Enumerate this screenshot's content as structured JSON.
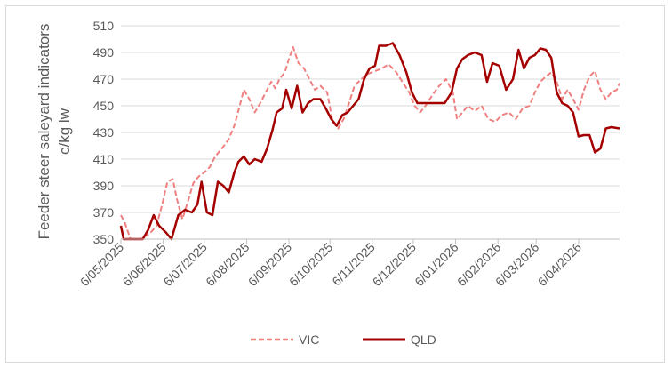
{
  "chart_data": {
    "type": "line",
    "ylabel_line1": "Feeder steer saleyard indicators",
    "ylabel_line2": "c/kg lw",
    "ylim": [
      350,
      510
    ],
    "yticks": [
      350,
      370,
      390,
      410,
      430,
      450,
      470,
      490,
      510
    ],
    "x_tick_labels": [
      "6/05/2025",
      "6/06/2025",
      "6/07/2025",
      "6/08/2025",
      "6/09/2025",
      "6/10/2025",
      "6/11/2025",
      "6/12/2025",
      "6/01/2026",
      "6/02/2026",
      "6/03/2026",
      "6/04/2026"
    ],
    "x_range": [
      "2025-05-06",
      "2026-05-06"
    ],
    "grid": "horizontal",
    "legend_position": "bottom",
    "series": [
      {
        "name": "VIC",
        "color": "#f08080",
        "style": "dashed",
        "points": [
          [
            "2025-05-06",
            368
          ],
          [
            "2025-05-09",
            362
          ],
          [
            "2025-05-13",
            350
          ],
          [
            "2025-05-20",
            350
          ],
          [
            "2025-05-27",
            354
          ],
          [
            "2025-06-01",
            360
          ],
          [
            "2025-06-05",
            375
          ],
          [
            "2025-06-09",
            393
          ],
          [
            "2025-06-13",
            395
          ],
          [
            "2025-06-16",
            380
          ],
          [
            "2025-06-20",
            365
          ],
          [
            "2025-06-24",
            378
          ],
          [
            "2025-06-28",
            392
          ],
          [
            "2025-07-02",
            397
          ],
          [
            "2025-07-06",
            400
          ],
          [
            "2025-07-10",
            404
          ],
          [
            "2025-07-14",
            412
          ],
          [
            "2025-07-19",
            418
          ],
          [
            "2025-07-24",
            425
          ],
          [
            "2025-07-28",
            435
          ],
          [
            "2025-08-01",
            450
          ],
          [
            "2025-08-04",
            462
          ],
          [
            "2025-08-08",
            455
          ],
          [
            "2025-08-12",
            445
          ],
          [
            "2025-08-16",
            452
          ],
          [
            "2025-08-20",
            460
          ],
          [
            "2025-08-24",
            468
          ],
          [
            "2025-08-27",
            463
          ],
          [
            "2025-08-30",
            470
          ],
          [
            "2025-09-03",
            475
          ],
          [
            "2025-09-06",
            485
          ],
          [
            "2025-09-09",
            494
          ],
          [
            "2025-09-13",
            482
          ],
          [
            "2025-09-17",
            478
          ],
          [
            "2025-09-21",
            470
          ],
          [
            "2025-09-25",
            462
          ],
          [
            "2025-09-29",
            465
          ],
          [
            "2025-10-04",
            460
          ],
          [
            "2025-10-08",
            438
          ],
          [
            "2025-10-12",
            433
          ],
          [
            "2025-10-16",
            440
          ],
          [
            "2025-10-20",
            452
          ],
          [
            "2025-10-24",
            465
          ],
          [
            "2025-10-29",
            470
          ],
          [
            "2025-11-03",
            474
          ],
          [
            "2025-11-08",
            476
          ],
          [
            "2025-11-13",
            478
          ],
          [
            "2025-11-18",
            481
          ],
          [
            "2025-11-23",
            476
          ],
          [
            "2025-11-28",
            468
          ],
          [
            "2025-12-03",
            460
          ],
          [
            "2025-12-07",
            450
          ],
          [
            "2025-12-11",
            445
          ],
          [
            "2025-12-15",
            450
          ],
          [
            "2025-12-20",
            458
          ],
          [
            "2025-12-25",
            465
          ],
          [
            "2025-12-30",
            470
          ],
          [
            "2026-01-04",
            460
          ],
          [
            "2026-01-07",
            440
          ],
          [
            "2026-01-11",
            445
          ],
          [
            "2026-01-15",
            450
          ],
          [
            "2026-01-20",
            446
          ],
          [
            "2026-01-25",
            450
          ],
          [
            "2026-01-30",
            440
          ],
          [
            "2026-02-04",
            438
          ],
          [
            "2026-02-09",
            443
          ],
          [
            "2026-02-14",
            445
          ],
          [
            "2026-02-19",
            440
          ],
          [
            "2026-02-24",
            448
          ],
          [
            "2026-03-01",
            450
          ],
          [
            "2026-03-05",
            460
          ],
          [
            "2026-03-09",
            468
          ],
          [
            "2026-03-13",
            472
          ],
          [
            "2026-03-17",
            475
          ],
          [
            "2026-03-21",
            468
          ],
          [
            "2026-03-25",
            455
          ],
          [
            "2026-03-29",
            462
          ],
          [
            "2026-04-02",
            455
          ],
          [
            "2026-04-06",
            447
          ],
          [
            "2026-04-10",
            462
          ],
          [
            "2026-04-14",
            472
          ],
          [
            "2026-04-18",
            476
          ],
          [
            "2026-04-22",
            462
          ],
          [
            "2026-04-26",
            455
          ],
          [
            "2026-04-30",
            460
          ],
          [
            "2026-05-04",
            462
          ],
          [
            "2026-05-06",
            467
          ]
        ]
      },
      {
        "name": "QLD",
        "color": "#a50000",
        "style": "solid",
        "points": [
          [
            "2025-05-06",
            360
          ],
          [
            "2025-05-08",
            350
          ],
          [
            "2025-05-14",
            350
          ],
          [
            "2025-05-22",
            350
          ],
          [
            "2025-05-26",
            357
          ],
          [
            "2025-05-30",
            368
          ],
          [
            "2025-06-03",
            360
          ],
          [
            "2025-06-08",
            355
          ],
          [
            "2025-06-12",
            350
          ],
          [
            "2025-06-17",
            368
          ],
          [
            "2025-06-22",
            372
          ],
          [
            "2025-06-27",
            370
          ],
          [
            "2025-07-01",
            376
          ],
          [
            "2025-07-04",
            393
          ],
          [
            "2025-07-08",
            370
          ],
          [
            "2025-07-12",
            368
          ],
          [
            "2025-07-16",
            393
          ],
          [
            "2025-07-20",
            390
          ],
          [
            "2025-07-24",
            385
          ],
          [
            "2025-07-28",
            400
          ],
          [
            "2025-07-31",
            408
          ],
          [
            "2025-08-04",
            412
          ],
          [
            "2025-08-08",
            406
          ],
          [
            "2025-08-12",
            410
          ],
          [
            "2025-08-17",
            408
          ],
          [
            "2025-08-21",
            418
          ],
          [
            "2025-08-25",
            432
          ],
          [
            "2025-08-28",
            445
          ],
          [
            "2025-09-01",
            448
          ],
          [
            "2025-09-04",
            462
          ],
          [
            "2025-09-08",
            448
          ],
          [
            "2025-09-12",
            465
          ],
          [
            "2025-09-16",
            445
          ],
          [
            "2025-09-20",
            452
          ],
          [
            "2025-09-24",
            455
          ],
          [
            "2025-09-29",
            455
          ],
          [
            "2025-10-03",
            448
          ],
          [
            "2025-10-07",
            440
          ],
          [
            "2025-10-11",
            435
          ],
          [
            "2025-10-15",
            443
          ],
          [
            "2025-10-19",
            445
          ],
          [
            "2025-10-23",
            450
          ],
          [
            "2025-10-27",
            455
          ],
          [
            "2025-10-31",
            470
          ],
          [
            "2025-11-04",
            478
          ],
          [
            "2025-11-08",
            480
          ],
          [
            "2025-11-11",
            495
          ],
          [
            "2025-11-16",
            495
          ],
          [
            "2025-11-21",
            497
          ],
          [
            "2025-11-26",
            488
          ],
          [
            "2025-12-01",
            475
          ],
          [
            "2025-12-05",
            460
          ],
          [
            "2025-12-09",
            452
          ],
          [
            "2025-12-14",
            452
          ],
          [
            "2025-12-19",
            452
          ],
          [
            "2025-12-24",
            452
          ],
          [
            "2025-12-29",
            452
          ],
          [
            "2026-01-03",
            460
          ],
          [
            "2026-01-07",
            478
          ],
          [
            "2026-01-11",
            485
          ],
          [
            "2026-01-15",
            488
          ],
          [
            "2026-01-20",
            490
          ],
          [
            "2026-01-25",
            488
          ],
          [
            "2026-01-29",
            468
          ],
          [
            "2026-02-02",
            482
          ],
          [
            "2026-02-07",
            480
          ],
          [
            "2026-02-12",
            462
          ],
          [
            "2026-02-17",
            470
          ],
          [
            "2026-02-21",
            492
          ],
          [
            "2026-02-25",
            478
          ],
          [
            "2026-03-01",
            486
          ],
          [
            "2026-03-05",
            488
          ],
          [
            "2026-03-09",
            493
          ],
          [
            "2026-03-13",
            492
          ],
          [
            "2026-03-17",
            486
          ],
          [
            "2026-03-21",
            460
          ],
          [
            "2026-03-25",
            452
          ],
          [
            "2026-03-29",
            450
          ],
          [
            "2026-04-02",
            445
          ],
          [
            "2026-04-06",
            427
          ],
          [
            "2026-04-10",
            428
          ],
          [
            "2026-04-14",
            428
          ],
          [
            "2026-04-18",
            415
          ],
          [
            "2026-04-22",
            418
          ],
          [
            "2026-04-26",
            433
          ],
          [
            "2026-04-30",
            434
          ],
          [
            "2026-05-06",
            433
          ]
        ]
      }
    ]
  }
}
